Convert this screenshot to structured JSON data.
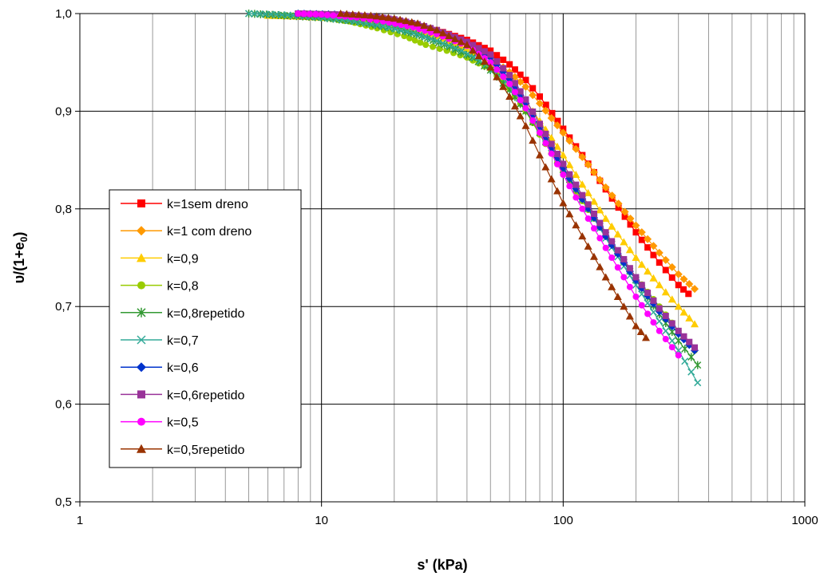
{
  "chart_data": {
    "type": "scatter",
    "title": "",
    "xlabel": "s' (kPa)",
    "ylabel_main": "υ/(1+e",
    "ylabel_sub": "0",
    "ylabel_close": ")",
    "xscale": "log",
    "xlim": [
      1,
      1000
    ],
    "ylim": [
      0.5,
      1.0
    ],
    "x_ticks": [
      1,
      10,
      100,
      1000
    ],
    "x_tick_labels": [
      "1",
      "10",
      "100",
      "1000"
    ],
    "y_ticks": [
      0.5,
      0.6,
      0.7,
      0.8,
      0.9,
      1.0
    ],
    "y_tick_labels": [
      "0,5",
      "0,6",
      "0,7",
      "0,8",
      "0,9",
      "1,0"
    ],
    "grid": true,
    "legend_position": "left-middle",
    "series": [
      {
        "name": "k=1sem dreno",
        "color": "#ff0000",
        "marker": "square",
        "x": [
          8,
          12,
          16,
          20,
          25,
          30,
          40,
          50,
          60,
          70,
          80,
          90,
          100,
          120,
          150,
          180,
          200,
          250,
          300,
          330
        ],
        "y": [
          1.0,
          0.998,
          0.995,
          0.992,
          0.988,
          0.983,
          0.973,
          0.962,
          0.948,
          0.932,
          0.915,
          0.898,
          0.882,
          0.855,
          0.82,
          0.792,
          0.776,
          0.745,
          0.722,
          0.713
        ]
      },
      {
        "name": "k=1 com dreno",
        "color": "#ff9900",
        "marker": "diamond",
        "x": [
          8,
          12,
          16,
          20,
          25,
          30,
          40,
          50,
          60,
          70,
          80,
          100,
          120,
          150,
          180,
          200,
          250,
          300,
          350
        ],
        "y": [
          1.0,
          0.998,
          0.995,
          0.991,
          0.986,
          0.98,
          0.968,
          0.955,
          0.94,
          0.925,
          0.908,
          0.878,
          0.853,
          0.822,
          0.797,
          0.783,
          0.755,
          0.733,
          0.718
        ]
      },
      {
        "name": "k=0,9",
        "color": "#ffcc00",
        "marker": "triangle",
        "x": [
          6,
          8,
          12,
          16,
          20,
          25,
          30,
          40,
          50,
          60,
          70,
          80,
          100,
          120,
          150,
          200,
          250,
          300,
          350
        ],
        "y": [
          0.998,
          0.997,
          0.995,
          0.992,
          0.988,
          0.983,
          0.977,
          0.964,
          0.948,
          0.93,
          0.91,
          0.89,
          0.855,
          0.825,
          0.79,
          0.75,
          0.722,
          0.7,
          0.682
        ]
      },
      {
        "name": "k=0,8",
        "color": "#99cc00",
        "marker": "circle",
        "x": [
          7,
          10,
          13,
          17,
          22,
          27,
          33,
          40,
          50,
          60,
          70,
          80,
          100,
          120,
          150,
          200,
          250,
          300,
          350
        ],
        "y": [
          0.998,
          0.996,
          0.992,
          0.985,
          0.977,
          0.968,
          0.962,
          0.955,
          0.943,
          0.923,
          0.9,
          0.876,
          0.838,
          0.808,
          0.772,
          0.73,
          0.7,
          0.675,
          0.655
        ]
      },
      {
        "name": "k=0,8repetido",
        "color": "#339933",
        "marker": "star",
        "x": [
          5,
          7,
          10,
          14,
          20,
          26,
          34,
          42,
          50,
          60,
          70,
          80,
          100,
          120,
          150,
          200,
          250,
          300,
          360
        ],
        "y": [
          1.0,
          0.998,
          0.996,
          0.992,
          0.985,
          0.977,
          0.966,
          0.955,
          0.942,
          0.922,
          0.9,
          0.878,
          0.84,
          0.81,
          0.773,
          0.727,
          0.692,
          0.665,
          0.64
        ]
      },
      {
        "name": "k=0,7",
        "color": "#33aa99",
        "marker": "x",
        "x": [
          5,
          6.5,
          9,
          13,
          18,
          24,
          30,
          38,
          48,
          58,
          70,
          80,
          100,
          120,
          150,
          200,
          250,
          300,
          360
        ],
        "y": [
          1.0,
          0.999,
          0.997,
          0.993,
          0.987,
          0.98,
          0.972,
          0.962,
          0.948,
          0.93,
          0.905,
          0.882,
          0.843,
          0.81,
          0.77,
          0.722,
          0.685,
          0.655,
          0.622
        ]
      },
      {
        "name": "k=0,6",
        "color": "#0033cc",
        "marker": "diamond",
        "x": [
          8,
          12,
          16,
          20,
          25,
          30,
          40,
          50,
          60,
          70,
          80,
          100,
          120,
          150,
          200,
          250,
          300,
          350
        ],
        "y": [
          1.0,
          0.999,
          0.996,
          0.993,
          0.988,
          0.982,
          0.97,
          0.955,
          0.933,
          0.908,
          0.883,
          0.842,
          0.81,
          0.772,
          0.727,
          0.695,
          0.672,
          0.655
        ]
      },
      {
        "name": "k=0,6repetido",
        "color": "#993399",
        "marker": "square",
        "x": [
          8,
          12,
          16,
          20,
          25,
          30,
          40,
          50,
          60,
          70,
          80,
          100,
          120,
          150,
          200,
          250,
          300,
          350
        ],
        "y": [
          1.0,
          0.999,
          0.997,
          0.994,
          0.989,
          0.983,
          0.971,
          0.958,
          0.937,
          0.912,
          0.887,
          0.846,
          0.814,
          0.776,
          0.73,
          0.698,
          0.675,
          0.658
        ]
      },
      {
        "name": "k=0,5",
        "color": "#ff00ff",
        "marker": "circle",
        "x": [
          8,
          10,
          14,
          18,
          24,
          30,
          40,
          50,
          60,
          70,
          80,
          100,
          120,
          150,
          200,
          250,
          300
        ],
        "y": [
          1.0,
          0.999,
          0.996,
          0.992,
          0.986,
          0.979,
          0.967,
          0.95,
          0.928,
          0.903,
          0.878,
          0.835,
          0.8,
          0.76,
          0.71,
          0.675,
          0.65
        ]
      },
      {
        "name": "k=0,5repetido",
        "color": "#993300",
        "marker": "triangle",
        "x": [
          12,
          16,
          20,
          25,
          30,
          40,
          50,
          60,
          70,
          80,
          100,
          120,
          150,
          200,
          220
        ],
        "y": [
          1.0,
          0.998,
          0.995,
          0.99,
          0.983,
          0.968,
          0.945,
          0.915,
          0.885,
          0.855,
          0.806,
          0.772,
          0.73,
          0.68,
          0.668
        ]
      }
    ]
  }
}
